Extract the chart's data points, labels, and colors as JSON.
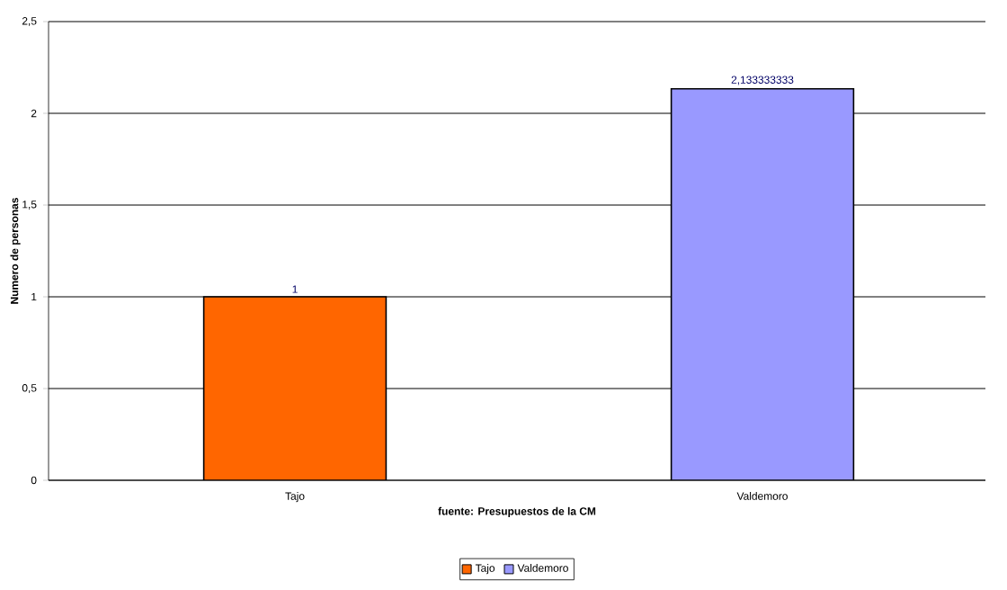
{
  "chart_data": {
    "type": "bar",
    "xlabel": "fuente: Presupuestos de la CM",
    "ylabel": "Numero de personas",
    "categories": [
      "Tajo",
      "Valdemoro"
    ],
    "series": [
      {
        "name": "Tajo",
        "color": "#ff6600",
        "values": [
          1,
          null
        ],
        "value_labels": [
          "1",
          null
        ]
      },
      {
        "name": "Valdemoro",
        "color": "#9999ff",
        "values": [
          null,
          2.133333333
        ],
        "value_labels": [
          null,
          "2,133333333"
        ]
      }
    ],
    "ylim": [
      0,
      2.5
    ],
    "yticks": [
      0,
      {
        "value": 0.5,
        "label": "0,5"
      },
      1,
      {
        "value": 1.5,
        "label": "1,5"
      },
      2,
      {
        "value": 2.5,
        "label": "2,5"
      }
    ],
    "grid": "y",
    "legend": "bottom"
  }
}
